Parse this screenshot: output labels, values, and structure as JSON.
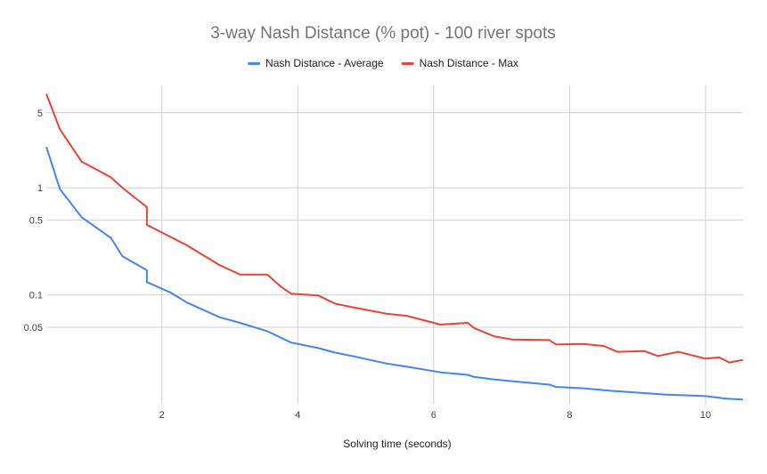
{
  "chart_data": {
    "type": "line",
    "title": "3-way Nash Distance (% pot) - 100 river spots",
    "xlabel": "Solving time (seconds)",
    "ylabel": "",
    "y_scale": "log",
    "xlim": [
      0.3,
      10.55
    ],
    "ylim": [
      0.0095,
      9
    ],
    "x_ticks": [
      2,
      4,
      6,
      8,
      10
    ],
    "y_ticks": [
      {
        "value": 5,
        "label": "5"
      },
      {
        "value": 1,
        "label": "1"
      },
      {
        "value": 0.5,
        "label": "0.5"
      },
      {
        "value": 0.1,
        "label": "0.1"
      },
      {
        "value": 0.05,
        "label": "0.05"
      }
    ],
    "grid": true,
    "legend_position": "top",
    "series": [
      {
        "name": "Nash Distance - Average",
        "color": "#4285f4",
        "points": [
          [
            0.3,
            2.4
          ],
          [
            0.5,
            0.97
          ],
          [
            0.82,
            0.53
          ],
          [
            1.25,
            0.34
          ],
          [
            1.42,
            0.23
          ],
          [
            1.78,
            0.17
          ],
          [
            1.78,
            0.132
          ],
          [
            2.13,
            0.105
          ],
          [
            2.37,
            0.085
          ],
          [
            2.85,
            0.062
          ],
          [
            3.15,
            0.055
          ],
          [
            3.55,
            0.046
          ],
          [
            3.75,
            0.04
          ],
          [
            3.9,
            0.036
          ],
          [
            4.3,
            0.032
          ],
          [
            4.55,
            0.029
          ],
          [
            4.8,
            0.027
          ],
          [
            5.3,
            0.023
          ],
          [
            5.6,
            0.0215
          ],
          [
            6.1,
            0.019
          ],
          [
            6.5,
            0.018
          ],
          [
            6.6,
            0.0172
          ],
          [
            6.9,
            0.0163
          ],
          [
            7.3,
            0.0154
          ],
          [
            7.7,
            0.0146
          ],
          [
            7.8,
            0.0139
          ],
          [
            8.2,
            0.0135
          ],
          [
            8.6,
            0.0128
          ],
          [
            9.0,
            0.0123
          ],
          [
            9.4,
            0.0118
          ],
          [
            10.0,
            0.0114
          ],
          [
            10.3,
            0.0108
          ],
          [
            10.55,
            0.0106
          ]
        ]
      },
      {
        "name": "Nash Distance - Max",
        "color": "#ea4335",
        "points": [
          [
            0.3,
            7.5
          ],
          [
            0.5,
            3.5
          ],
          [
            0.82,
            1.75
          ],
          [
            1.25,
            1.25
          ],
          [
            1.42,
            1.0
          ],
          [
            1.78,
            0.66
          ],
          [
            1.78,
            0.45
          ],
          [
            2.37,
            0.29
          ],
          [
            2.85,
            0.19
          ],
          [
            3.15,
            0.155
          ],
          [
            3.55,
            0.155
          ],
          [
            3.75,
            0.12
          ],
          [
            3.9,
            0.103
          ],
          [
            4.3,
            0.099
          ],
          [
            4.55,
            0.083
          ],
          [
            4.8,
            0.077
          ],
          [
            5.3,
            0.067
          ],
          [
            5.6,
            0.064
          ],
          [
            6.1,
            0.053
          ],
          [
            6.5,
            0.055
          ],
          [
            6.6,
            0.049
          ],
          [
            6.9,
            0.041
          ],
          [
            7.15,
            0.0385
          ],
          [
            7.7,
            0.038
          ],
          [
            7.8,
            0.0345
          ],
          [
            8.2,
            0.035
          ],
          [
            8.5,
            0.0335
          ],
          [
            8.7,
            0.0295
          ],
          [
            9.1,
            0.03
          ],
          [
            9.3,
            0.027
          ],
          [
            9.6,
            0.0295
          ],
          [
            10.0,
            0.0255
          ],
          [
            10.2,
            0.0262
          ],
          [
            10.35,
            0.0235
          ],
          [
            10.55,
            0.0248
          ]
        ]
      }
    ]
  }
}
